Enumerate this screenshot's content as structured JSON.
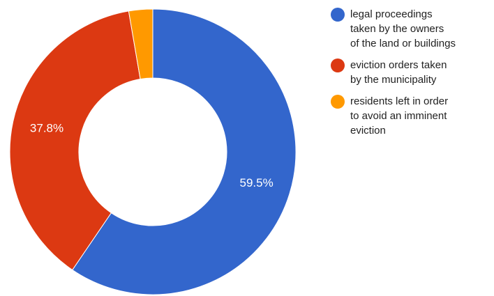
{
  "chart_data": {
    "type": "pie",
    "donut": true,
    "legend_position": "right",
    "start_angle_deg": 0,
    "series": [
      {
        "name": "legal proceedings taken by the owners of the land or buildings",
        "value": 59.5,
        "label": "59.5%",
        "color": "#3366cc"
      },
      {
        "name": "eviction orders taken by the municipality",
        "value": 37.8,
        "label": "37.8%",
        "color": "#dc3912"
      },
      {
        "name": "residents left in order to avoid an imminent eviction",
        "value": 2.7,
        "label": "",
        "color": "#ff9900"
      }
    ]
  },
  "legend": {
    "items": [
      {
        "lines": [
          "legal proceedings",
          "taken by the owners",
          "of the land or buildings"
        ]
      },
      {
        "lines": [
          "eviction orders taken",
          "by the municipality"
        ]
      },
      {
        "lines": [
          "residents left in order",
          "to avoid an imminent",
          "eviction"
        ]
      }
    ]
  }
}
